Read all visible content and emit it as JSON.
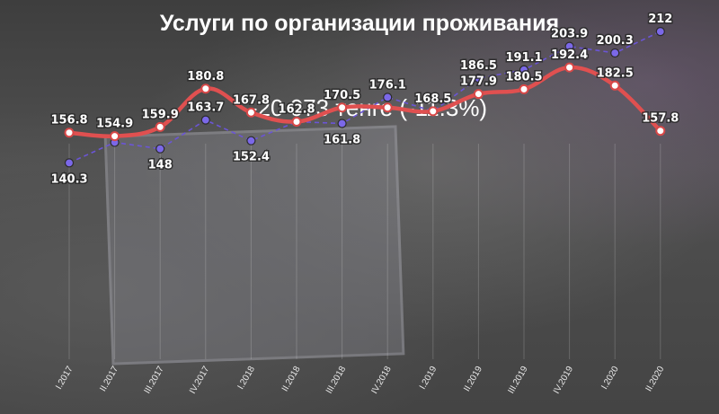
{
  "chart_data": {
    "type": "line",
    "title": "Услуги по организации проживания",
    "subtitle": "-20 073 тенге (-11.3%)",
    "categories": [
      "I.2017",
      "II.2017",
      "III.2017",
      "IV.2017",
      "I.2018",
      "II.2018",
      "III.2018",
      "IV.2018",
      "I.2019",
      "II.2019",
      "III.2019",
      "IV.2019",
      "I.2020",
      "II.2020"
    ],
    "series": [
      {
        "color": "#e05050",
        "values": [
          156.8,
          154.9,
          159.9,
          180.8,
          167.8,
          162.8,
          170.5,
          170.5,
          168.5,
          177.9,
          180.5,
          192.4,
          182.5,
          157.8
        ],
        "labels": [
          "156.8",
          "154.9",
          "159.9",
          "180.8",
          "167.8",
          "162.8",
          "170.5",
          "",
          "168.5",
          "177.9",
          "180.5",
          "192.4",
          "182.5",
          "157.8"
        ]
      },
      {
        "color": "#6b55d6",
        "values": [
          140.3,
          151.5,
          148,
          163.7,
          152.4,
          162.8,
          161.8,
          176.1,
          168.5,
          186.5,
          191.1,
          203.9,
          200.3,
          212
        ],
        "labels": [
          "140.3",
          "",
          "148",
          "163.7",
          "152.4",
          "",
          "161.8",
          "176.1",
          "",
          "186.5",
          "191.1",
          "203.9",
          "200.3",
          "212"
        ]
      }
    ],
    "xlabel": "",
    "ylabel": "",
    "grid": true
  }
}
